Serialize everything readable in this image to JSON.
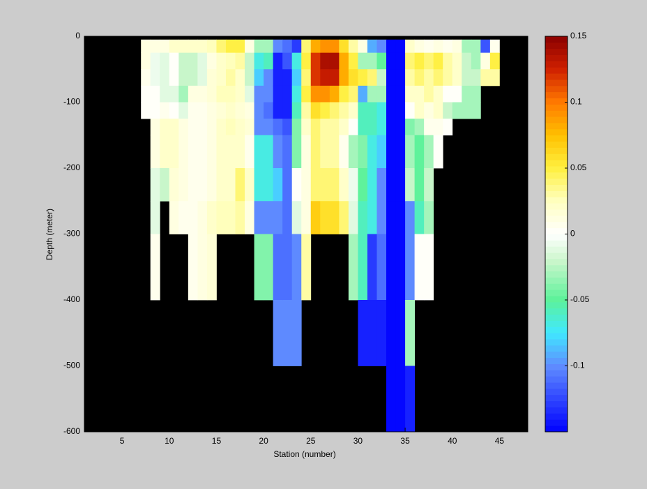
{
  "chart_data": {
    "type": "heatmap",
    "xlabel": "Station (number)",
    "ylabel": "Depth (meter)",
    "xlim": [
      1,
      48
    ],
    "xticks": [
      5,
      10,
      15,
      20,
      25,
      30,
      35,
      40,
      45
    ],
    "ylim": [
      -600,
      0
    ],
    "yticks": [
      0,
      -100,
      -200,
      -300,
      -400,
      -500,
      -600
    ],
    "background": "#000000",
    "clim": [
      -0.15,
      0.15
    ],
    "cticks": [
      0.15,
      0.1,
      0.05,
      0,
      -0.05,
      -0.1
    ],
    "colormap": [
      [
        -0.15,
        "#0000ff"
      ],
      [
        -0.1,
        "#5f8cff"
      ],
      [
        -0.075,
        "#40e8ff"
      ],
      [
        -0.05,
        "#5cf29a"
      ],
      [
        -0.02,
        "#ccf6cc"
      ],
      [
        0,
        "#ffffff"
      ],
      [
        0.025,
        "#ffffc0"
      ],
      [
        0.05,
        "#fff040"
      ],
      [
        0.075,
        "#ffc000"
      ],
      [
        0.1,
        "#ff7a00"
      ],
      [
        0.125,
        "#d02000"
      ],
      [
        0.15,
        "#8b0000"
      ]
    ],
    "colormap_levels": 64,
    "x_edges": [
      7,
      8,
      9,
      10,
      11,
      12,
      13,
      14,
      15,
      16,
      17,
      18,
      19,
      20,
      21,
      22,
      23,
      24,
      25,
      26,
      27,
      28,
      29,
      30,
      31,
      32,
      33,
      34,
      35,
      36,
      37,
      38,
      39,
      40,
      41,
      42,
      43,
      44,
      45
    ],
    "y_edges": [
      -5,
      -25,
      -50,
      -75,
      -100,
      -125,
      -150,
      -200,
      -250,
      -300,
      -400,
      -500,
      -600
    ],
    "z": [
      [
        0.01,
        0.01,
        0.005,
        0,
        0,
        null,
        null,
        null,
        null,
        null,
        null,
        null
      ],
      [
        0.01,
        -0.005,
        -0.005,
        0,
        0,
        0.01,
        0.01,
        -0.01,
        -0.01,
        0.005,
        null,
        null
      ],
      [
        0.01,
        -0.01,
        -0.01,
        -0.01,
        0.005,
        0.02,
        0.02,
        -0.02,
        null,
        null,
        null,
        null
      ],
      [
        0.02,
        0,
        0,
        -0.01,
        0,
        0.02,
        0.02,
        0.015,
        0.01,
        null,
        null,
        null
      ],
      [
        0.02,
        -0.02,
        -0.02,
        -0.03,
        -0.01,
        0.01,
        0.01,
        0.01,
        0.005,
        null,
        null,
        null
      ],
      [
        0.02,
        -0.02,
        -0.02,
        0.01,
        0.005,
        0.005,
        0.005,
        0.005,
        0.005,
        0.005,
        null,
        null
      ],
      [
        0.02,
        -0.01,
        -0.01,
        0.01,
        0.005,
        0.005,
        0.005,
        0.005,
        0.01,
        0.01,
        null,
        null
      ],
      [
        0.025,
        0.01,
        0.015,
        0.015,
        0.01,
        0.01,
        0.01,
        0.01,
        0.02,
        0.015,
        null,
        null
      ],
      [
        0.04,
        0.02,
        0.02,
        0.025,
        0.015,
        0.02,
        0.02,
        0.02,
        0.025,
        null,
        null,
        null
      ],
      [
        0.05,
        0.025,
        0.03,
        0.025,
        0.02,
        0.025,
        0.02,
        0.02,
        0.025,
        null,
        null,
        null
      ],
      [
        0.05,
        0.03,
        0.02,
        0.02,
        0.015,
        0.02,
        0.02,
        0.04,
        0.03,
        null,
        null,
        null
      ],
      [
        0.01,
        -0.02,
        -0.02,
        -0.01,
        0.01,
        0.015,
        0.005,
        0.02,
        0.01,
        null,
        null,
        null
      ],
      [
        -0.03,
        -0.07,
        -0.08,
        -0.1,
        -0.1,
        -0.1,
        -0.07,
        -0.07,
        -0.1,
        -0.04,
        null,
        null
      ],
      [
        -0.03,
        -0.06,
        -0.1,
        -0.1,
        -0.11,
        -0.1,
        -0.07,
        -0.07,
        -0.1,
        -0.04,
        null,
        null
      ],
      [
        -0.1,
        -0.14,
        -0.14,
        -0.14,
        -0.14,
        -0.11,
        -0.1,
        -0.08,
        -0.1,
        -0.11,
        -0.1,
        null
      ],
      [
        -0.11,
        -0.12,
        -0.14,
        -0.14,
        -0.14,
        -0.12,
        -0.11,
        -0.11,
        -0.11,
        -0.11,
        -0.1,
        null
      ],
      [
        -0.13,
        -0.07,
        -0.08,
        -0.07,
        -0.06,
        -0.04,
        -0.04,
        0,
        -0.01,
        -0.1,
        -0.1,
        null
      ],
      [
        0.04,
        0.05,
        0.04,
        0.05,
        0.03,
        0.02,
        0.01,
        0.01,
        0.01,
        0.03,
        null,
        null
      ],
      [
        0.08,
        0.12,
        0.12,
        0.09,
        0.06,
        0.04,
        0.04,
        0.04,
        0.07,
        null,
        null,
        null
      ],
      [
        0.09,
        0.14,
        0.13,
        0.09,
        0.05,
        0.03,
        0.03,
        0.04,
        0.06,
        null,
        null,
        null
      ],
      [
        0.09,
        0.14,
        0.13,
        0.08,
        0.04,
        0.03,
        0.03,
        0.04,
        0.06,
        null,
        null,
        null
      ],
      [
        0.06,
        0.08,
        0.08,
        0.05,
        0.03,
        0.02,
        0.005,
        0.02,
        0.04,
        null,
        null,
        null
      ],
      [
        0.03,
        0.05,
        0.06,
        0.04,
        0.02,
        0,
        -0.03,
        -0.005,
        -0.01,
        -0.03,
        null,
        null
      ],
      [
        0.01,
        -0.03,
        0.05,
        -0.09,
        -0.06,
        -0.06,
        -0.04,
        -0.05,
        -0.06,
        -0.06,
        -0.14,
        null
      ],
      [
        -0.09,
        -0.03,
        0.04,
        -0.03,
        -0.06,
        -0.06,
        -0.07,
        -0.07,
        -0.07,
        -0.13,
        -0.14,
        null
      ],
      [
        -0.1,
        -0.05,
        -0.02,
        -0.03,
        -0.07,
        -0.07,
        -0.08,
        -0.1,
        -0.1,
        -0.11,
        -0.14,
        null
      ],
      [
        -0.15,
        -0.15,
        -0.15,
        -0.15,
        -0.15,
        -0.15,
        -0.15,
        -0.15,
        -0.15,
        -0.15,
        -0.15,
        -0.15
      ],
      [
        -0.15,
        -0.15,
        -0.15,
        -0.15,
        -0.15,
        -0.15,
        -0.15,
        -0.15,
        -0.15,
        -0.15,
        -0.15,
        -0.15
      ],
      [
        0.02,
        0.04,
        0.03,
        0.02,
        0,
        -0.04,
        -0.03,
        -0.02,
        -0.1,
        -0.1,
        -0.03,
        -0.14
      ],
      [
        0.01,
        0.05,
        0.04,
        0.02,
        0.02,
        -0.03,
        -0.05,
        -0.05,
        -0.06,
        0,
        null,
        null
      ],
      [
        0.005,
        0.04,
        0.03,
        0.03,
        0.01,
        0.005,
        -0.03,
        -0.02,
        -0.03,
        0,
        null,
        null
      ],
      [
        0.01,
        0.05,
        0.04,
        0.02,
        0.02,
        0.005,
        0,
        null,
        null,
        null,
        null,
        null
      ],
      [
        0.005,
        0.03,
        0.03,
        0,
        -0.02,
        0,
        null,
        null,
        null,
        null,
        null,
        null
      ],
      [
        0.01,
        0.02,
        0.02,
        0,
        -0.03,
        null,
        null,
        null,
        null,
        null,
        null,
        null
      ],
      [
        -0.03,
        -0.02,
        -0.02,
        -0.03,
        -0.03,
        null,
        null,
        null,
        null,
        null,
        null,
        null
      ],
      [
        -0.03,
        -0.03,
        -0.02,
        -0.03,
        -0.03,
        null,
        null,
        null,
        null,
        null,
        null,
        null
      ],
      [
        -0.12,
        0.01,
        0.03,
        null,
        null,
        null,
        null,
        null,
        null,
        null,
        null,
        null
      ],
      [
        0.005,
        0.05,
        0.03,
        null,
        null,
        null,
        null,
        null,
        null,
        null,
        null,
        null
      ]
    ]
  }
}
